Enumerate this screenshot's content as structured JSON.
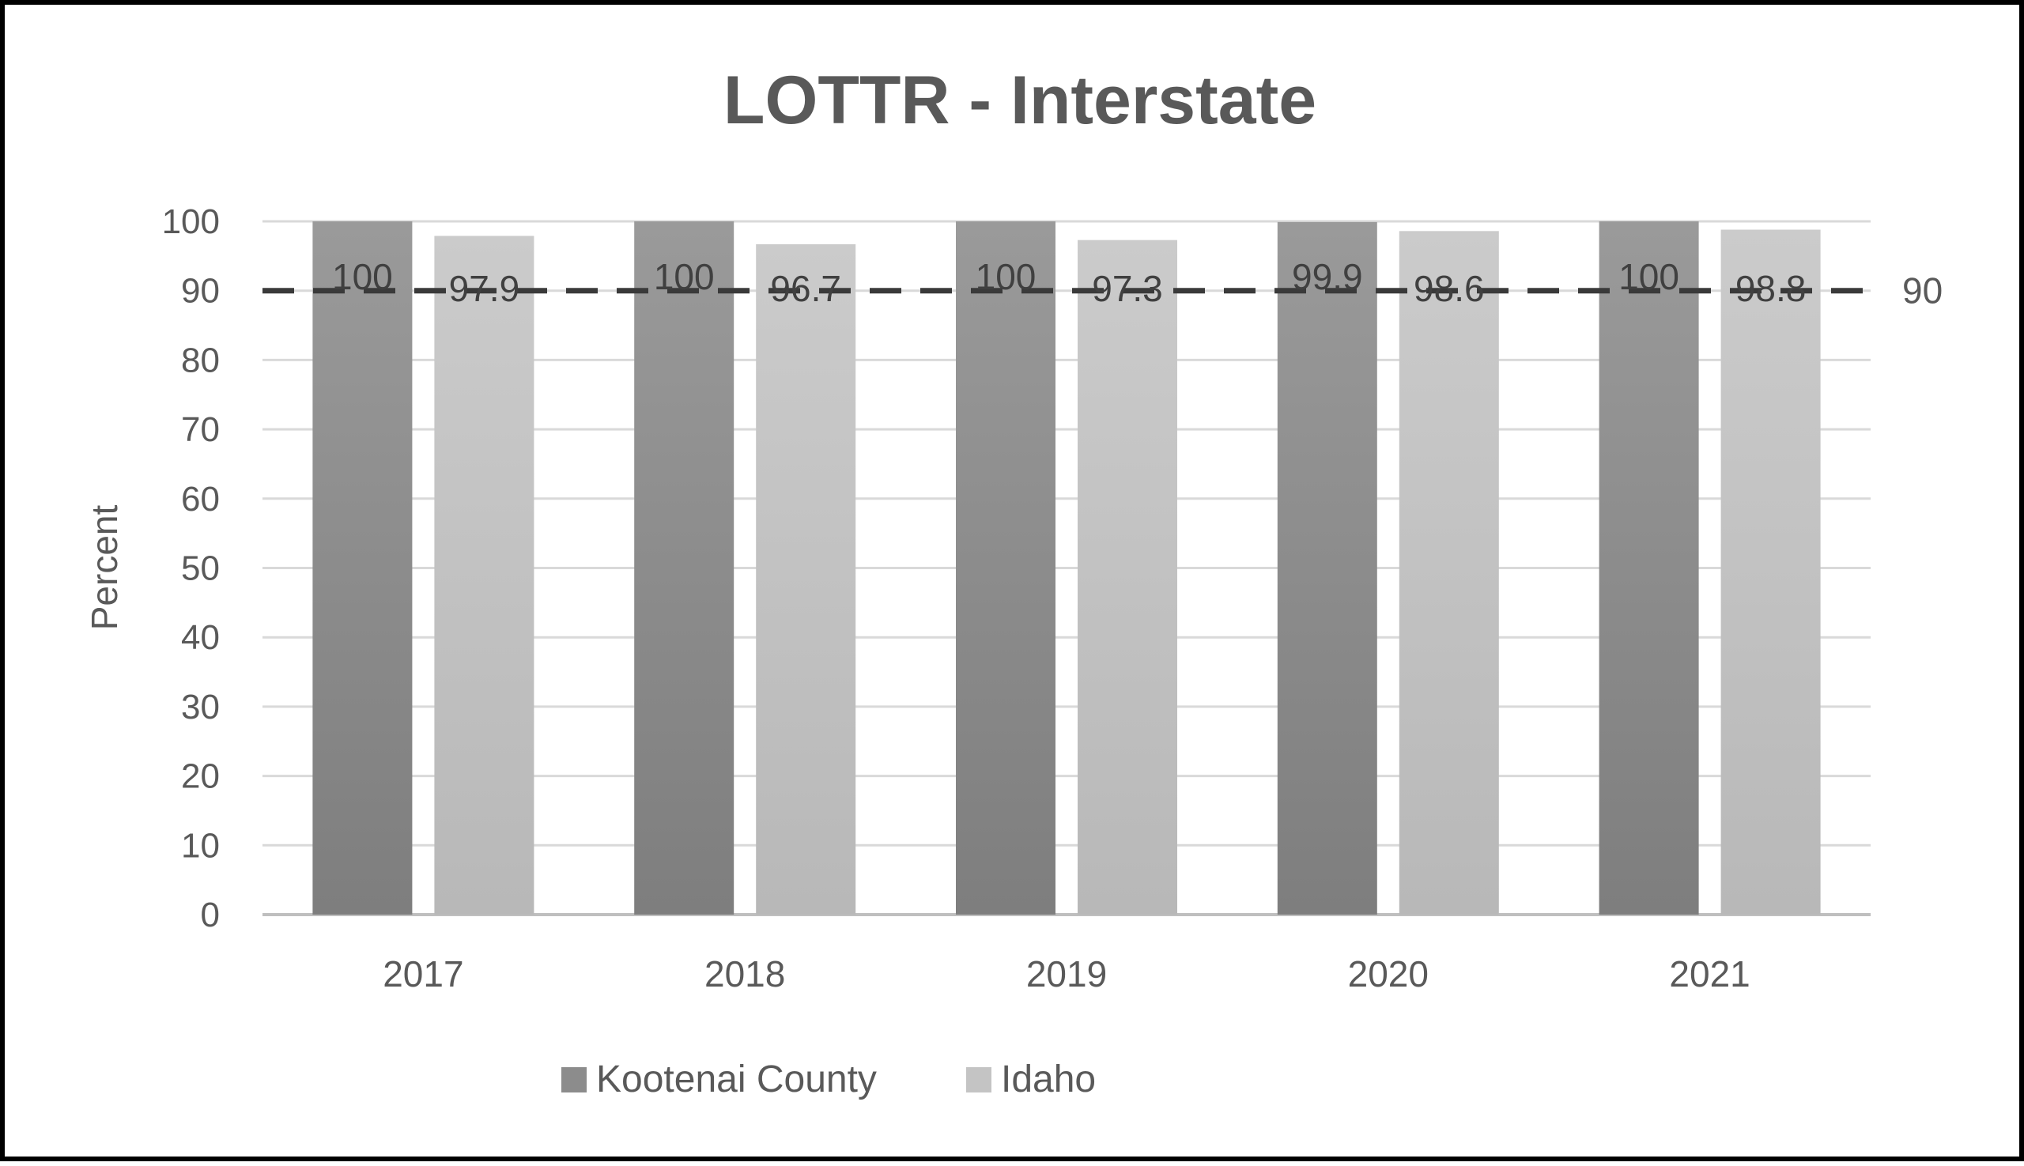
{
  "chart_data": {
    "type": "bar",
    "title": "LOTTR - Interstate",
    "xlabel": "",
    "ylabel": "Percent",
    "categories": [
      "2017",
      "2018",
      "2019",
      "2020",
      "2021"
    ],
    "ylim": [
      0,
      100
    ],
    "yticks": [
      "0",
      "10",
      "20",
      "30",
      "40",
      "50",
      "60",
      "70",
      "80",
      "90",
      "100"
    ],
    "grid": true,
    "legend_position": "bottom",
    "series": [
      {
        "name": "Kootenai County",
        "values": [
          100,
          100,
          100,
          99.9,
          100
        ],
        "labels": [
          "100",
          "100",
          "100",
          "99.9",
          "100"
        ],
        "color": "#8c8c8c"
      },
      {
        "name": "Idaho",
        "values": [
          97.9,
          96.7,
          97.3,
          98.6,
          98.8
        ],
        "labels": [
          "97.9",
          "96.7",
          "97.3",
          "98.6",
          "98.8"
        ],
        "color": "#c4c4c4"
      }
    ],
    "reference_line": {
      "value": 90,
      "label": "90",
      "style": "dashed",
      "color": "#3a3a3a"
    },
    "colors": {
      "grid": "#d9d9d9",
      "text": "#595959",
      "data_label": "#404040",
      "border": "#000000"
    }
  }
}
